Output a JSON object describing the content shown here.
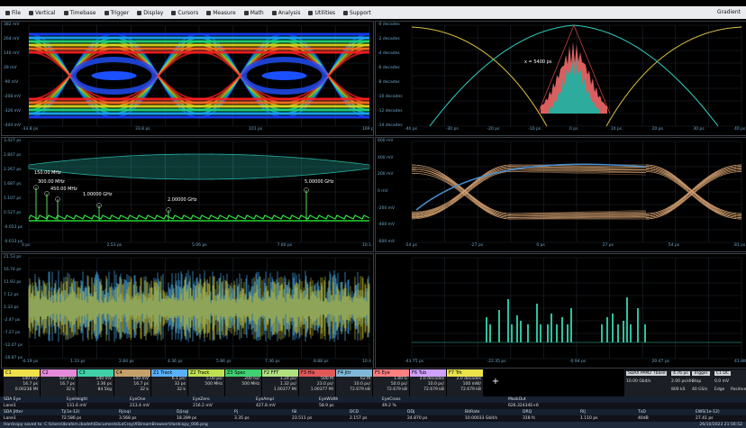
{
  "menu": {
    "items": [
      {
        "label": "File",
        "icon": "file-icon"
      },
      {
        "label": "Vertical",
        "icon": "vertical-icon"
      },
      {
        "label": "Timebase",
        "icon": "timebase-icon"
      },
      {
        "label": "Trigger",
        "icon": "trigger-icon"
      },
      {
        "label": "Display",
        "icon": "display-icon"
      },
      {
        "label": "Cursors",
        "icon": "cursors-icon"
      },
      {
        "label": "Measure",
        "icon": "measure-icon"
      },
      {
        "label": "Math",
        "icon": "math-icon"
      },
      {
        "label": "Analysis",
        "icon": "analysis-icon"
      },
      {
        "label": "Utilities",
        "icon": "utilities-icon"
      },
      {
        "label": "Support",
        "icon": "support-icon"
      }
    ],
    "brand": "Gradient"
  },
  "panels": {
    "eye": {
      "yticks": [
        "382 mV",
        "264 mV",
        "146 mV",
        "28 mV",
        "-90 mV",
        "-208 mV",
        "-326 mV",
        "-444 mV"
      ],
      "xticks": [
        "-33.8 ps",
        "",
        "33.8 ps",
        "",
        "101 ps",
        "",
        "169 ps"
      ]
    },
    "bathtub": {
      "yticks": [
        "-0 decades",
        "-2 decades",
        "-4 decades",
        "-6 decades",
        "-8 decades",
        "-10 decades",
        "-12 decades",
        "-14 decades"
      ],
      "xticks": [
        "-40 ps",
        "-30 ps",
        "-20 ps",
        "-10 ps",
        "0 ps",
        "10 ps",
        "20 ps",
        "30 ps",
        "40 ps"
      ],
      "annotation": "x = 5400 ps"
    },
    "spectrum": {
      "yticks": [
        "3.427 ps",
        "2.847 ps",
        "2.267 ps",
        "1.687 ps",
        "1.107 ps",
        "0.527 ps",
        "-0.053 ps",
        "-0.633 ps"
      ],
      "xticks": [
        "0 ps",
        "2.53 ps",
        "5.06 ps",
        "7.60 ps",
        "10.1 ps"
      ],
      "markers": [
        "150.00 MHz",
        "300.00 MHz",
        "450.00 MHz",
        "1.00000 GHz",
        "2.00000 GHz",
        "5.00000 GHz"
      ]
    },
    "eye2": {
      "yticks": [
        "600 mV",
        "400 mV",
        "200 mV",
        "0 mV",
        "-200 mV",
        "-400 mV",
        "-600 mV"
      ],
      "xticks": [
        "-54 ps",
        "-27 ps",
        "0 ps",
        "27 ps",
        "54 ps",
        "81 ps"
      ]
    },
    "jitter": {
      "yticks": [
        "21.53 ps",
        "16.74 ps",
        "11.93 ps",
        "7.12 ps",
        "2.33 ps",
        "-2.47 ps",
        "-7.27 ps",
        "-12.07 ps",
        "-16.87 ps"
      ],
      "xticks": [
        "-0.19 ps",
        "1.33 ps",
        "2.84 ps",
        "4.36 ps",
        "5.86 ps",
        "7.36 ps",
        "8.88 ps",
        "10.4 ps"
      ]
    },
    "histo": {
      "yticks": [],
      "xticks": [
        "-43.75 ps",
        "-22.35 ps",
        "-0.94 ps",
        "20.47 ps",
        "41.88 ps"
      ]
    }
  },
  "channels": [
    {
      "name": "C1",
      "color": "#f0e24a",
      "v1": "140 mV",
      "v2": "16.7 ps",
      "v3": "0.00236 MI"
    },
    {
      "name": "C2",
      "color": "#e48ad8",
      "v1": "500 mV",
      "v2": "16.7 ps",
      "v3": "32 k"
    },
    {
      "name": "C3",
      "color": "#3fd0a8",
      "v1": "140 mV",
      "v2": "3.36 ps",
      "v3": "84.5kg"
    },
    {
      "name": "C4",
      "color": "#c4a06a",
      "v1": "140 mV",
      "v2": "16.7 ps",
      "v3": "32 k"
    },
    {
      "name": "Z1 Track",
      "color": "#5ab0ff",
      "v1": "6.1 ps/",
      "v2": "32 ps",
      "v3": "32 k"
    },
    {
      "name": "Z2 Track",
      "color": "#c0e050",
      "v1": "5.00 ps/",
      "v2": "500 MHz",
      "v3": ""
    },
    {
      "name": "Z3 Spec",
      "color": "#40d070",
      "v1": "200 hz/",
      "v2": "500 MHz",
      "v3": ""
    },
    {
      "name": "F2 FFT",
      "color": "#b0e080",
      "v1": "1.24 ps/",
      "v2": "1.32 ps/",
      "v3": "1.00377 MI"
    },
    {
      "name": "F3 His",
      "color": "#e05858",
      "v1": "500 M",
      "v2": "23.0 ps/",
      "v3": "1.00377 MI"
    },
    {
      "name": "F4 Jitr",
      "color": "#7fb8d8",
      "v1": "62 M",
      "v2": "10.0 ps/",
      "v3": "72.679 kB"
    },
    {
      "name": "F5 Eye",
      "color": "#ff8080",
      "v1": "1.00 G",
      "v2": "50.0 ps/",
      "v3": "72.679 kB"
    },
    {
      "name": "F6 Tub",
      "color": "#d0a0ff",
      "v1": "2.0 decades",
      "v2": "10.0 ps/",
      "v3": "72.679 kB"
    },
    {
      "name": "F7 Trk",
      "color": "#ece24a",
      "v1": "2.0 decades",
      "v2": "100 mW/",
      "v3": "72.679 kB"
    }
  ],
  "timebase": {
    "row1": [
      "SDAX PAM2",
      "Tbase",
      "4.76 µs",
      "Trigger",
      "C1 DC"
    ],
    "row2": [
      "10.00 Gbit/s",
      "",
      "2.00 ps/div",
      "Stop",
      "0.0 mV"
    ],
    "row3": [
      "",
      "",
      "800 kS",
      "40 GS/s",
      "Edge",
      "Positive"
    ]
  },
  "measurements": {
    "headers": [
      "SDA Eye",
      "EyeHeight",
      "EyeOne",
      "EyeZero",
      "EyeAmpl",
      "EyeWidth",
      "EyeCross",
      "",
      "MaskOut"
    ],
    "row1": [
      "Lane1",
      "131.6 mV",
      "213.4 mV",
      "216.2 mV",
      "427.8 mV",
      "58.9 ps",
      "49.2 %",
      "",
      "626.32434E+6"
    ],
    "headers2": [
      "SDA Jitter",
      "Tj(1e-12)",
      "Rj(sq)",
      "Dj(sq)",
      "Pj",
      "ISI",
      "DCD",
      "DDj",
      "BitRate",
      "DRQ",
      "RIJ",
      "TxD",
      "EWS(1e-12)"
    ],
    "row2": [
      "Lane1",
      "72.586 ps",
      "3.568 ps",
      "18.289 ps",
      "3.35 ps",
      "23.511 ps",
      "2.157 ps",
      "24.870 ps",
      "10.00033 Gbit/s",
      "318 fs",
      "1.110 ps",
      "40dB",
      "27.41 ps"
    ]
  },
  "statusbar": {
    "text": "Hardcopy saved to: C:\\Users\\Ibrahim.ibadeh\\Documents\\LeCroy\\XStreamBrowser\\Hardcopy_006.png",
    "time": "26/10/2023 21:56:52"
  }
}
